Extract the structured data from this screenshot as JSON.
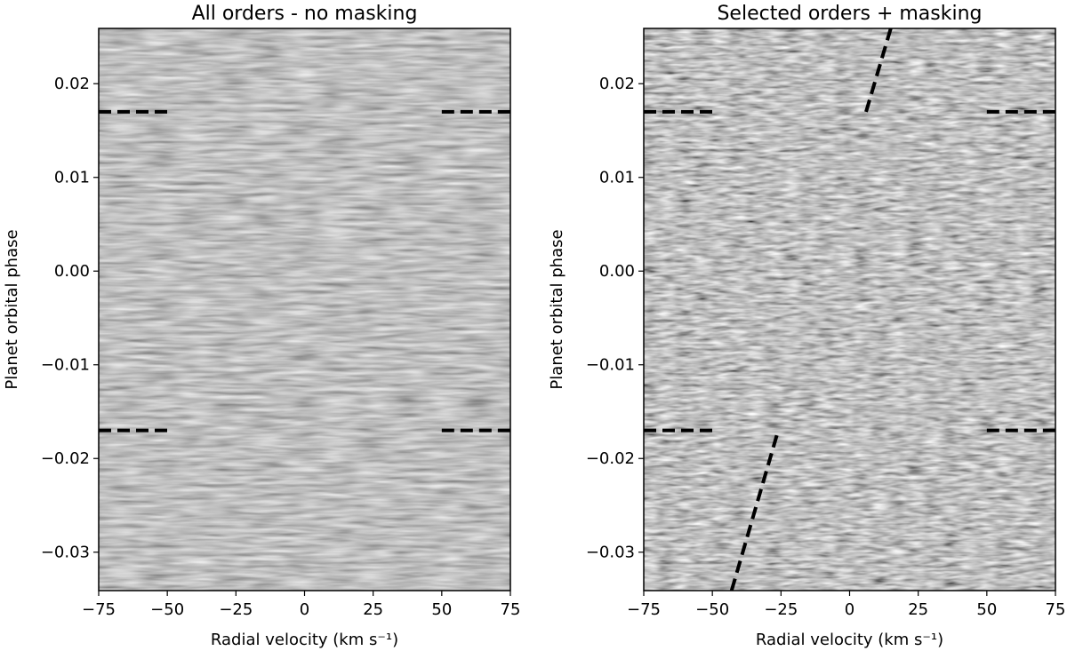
{
  "chart_data": [
    {
      "type": "heatmap",
      "title": "All orders - no masking",
      "xlabel": "Radial velocity (km s⁻¹)",
      "ylabel": "Planet orbital phase",
      "xlim": [
        -75,
        75
      ],
      "ylim": [
        -0.0341,
        0.0259
      ],
      "xticks": [
        {
          "value": -75,
          "label": "−75"
        },
        {
          "value": -50,
          "label": "−50"
        },
        {
          "value": -25,
          "label": "−25"
        },
        0,
        25,
        50,
        75
      ],
      "yticks": [
        0.02,
        0.01,
        {
          "value": 0,
          "label": "0.00"
        },
        {
          "value": -0.01,
          "label": "−0.01"
        },
        {
          "value": -0.02,
          "label": "−0.02"
        },
        {
          "value": -0.03,
          "label": "−0.03"
        }
      ],
      "line_color": "#000000",
      "lines": [
        {
          "x": [
            -75,
            -50
          ],
          "y": [
            0.017,
            0.017
          ]
        },
        {
          "x": [
            50,
            75
          ],
          "y": [
            0.017,
            0.017
          ]
        },
        {
          "x": [
            -75,
            -50
          ],
          "y": [
            -0.017,
            -0.017
          ]
        },
        {
          "x": [
            50,
            75
          ],
          "y": [
            -0.017,
            -0.017
          ]
        }
      ]
    },
    {
      "type": "heatmap",
      "title": "Selected orders + masking",
      "xlabel": "Radial velocity (km s⁻¹)",
      "ylabel": "Planet orbital phase",
      "xlim": [
        -75,
        75
      ],
      "ylim": [
        -0.0341,
        0.0259
      ],
      "xticks": [
        {
          "value": -75,
          "label": "−75"
        },
        {
          "value": -50,
          "label": "−50"
        },
        {
          "value": -25,
          "label": "−25"
        },
        0,
        25,
        50,
        75
      ],
      "yticks": [
        0.02,
        0.01,
        {
          "value": 0,
          "label": "0.00"
        },
        {
          "value": -0.01,
          "label": "−0.01"
        },
        {
          "value": -0.02,
          "label": "−0.02"
        },
        {
          "value": -0.03,
          "label": "−0.03"
        }
      ],
      "line_color": "#000000",
      "lines": [
        {
          "x": [
            -75,
            -50
          ],
          "y": [
            0.017,
            0.017
          ]
        },
        {
          "x": [
            50,
            75
          ],
          "y": [
            0.017,
            0.017
          ]
        },
        {
          "x": [
            -75,
            -50
          ],
          "y": [
            -0.017,
            -0.017
          ]
        },
        {
          "x": [
            50,
            75
          ],
          "y": [
            -0.017,
            -0.017
          ]
        },
        {
          "x": [
            -43,
            -26
          ],
          "y": [
            -0.0341,
            -0.017
          ]
        },
        {
          "x": [
            6,
            15
          ],
          "y": [
            0.017,
            0.0259
          ]
        }
      ]
    }
  ]
}
